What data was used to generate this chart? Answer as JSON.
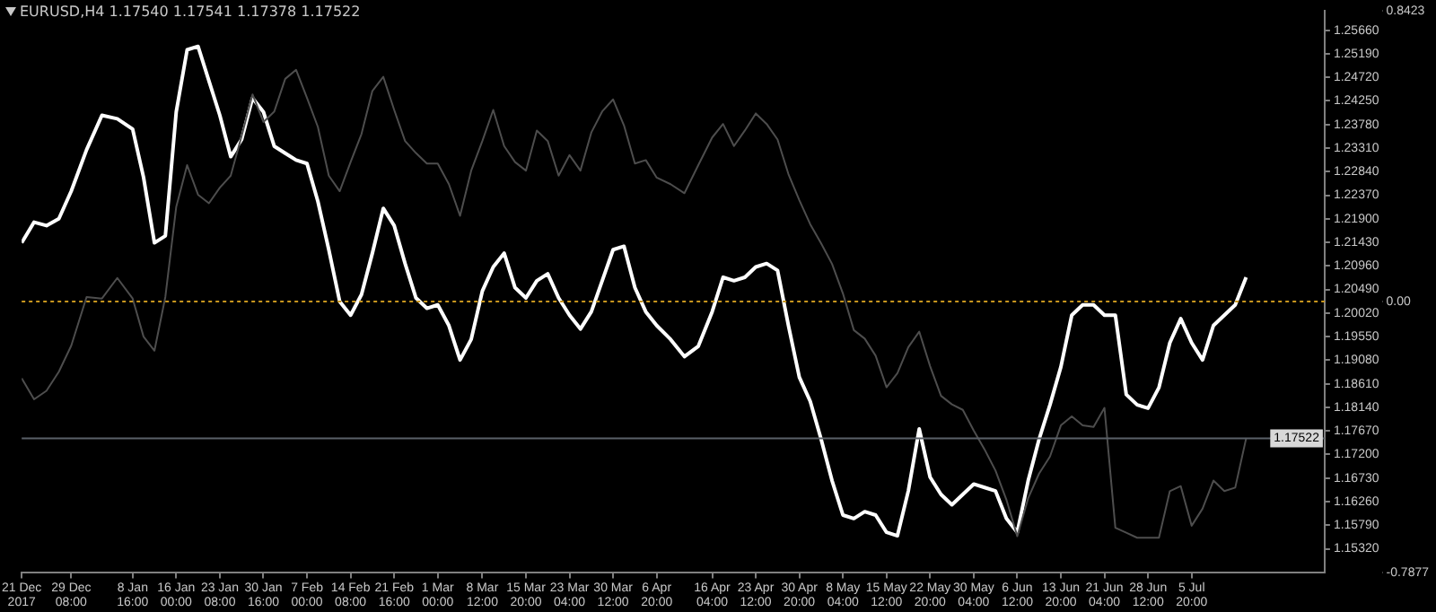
{
  "chart_data": {
    "type": "line",
    "title": "EURUSD,H4 1.17540 1.17541 1.17378 1.17522",
    "grid": false,
    "legend": false,
    "x": [
      "2017-12-21T00:00",
      "2017-12-23T02:00",
      "2017-12-25T04:00",
      "2017-12-27T06:00",
      "2017-12-29T08:00",
      "2017-12-31T22:00",
      "2018-01-03T12:00",
      "2018-01-06T02:00",
      "2018-01-08T16:00",
      "2018-01-10T12:00",
      "2018-01-12T08:00",
      "2018-01-14T04:00",
      "2018-01-16T00:00",
      "2018-01-17T20:00",
      "2018-01-19T16:00",
      "2018-01-21T12:00",
      "2018-01-23T08:00",
      "2018-01-25T04:00",
      "2018-01-27T00:00",
      "2018-01-28T20:00",
      "2018-01-30T16:00",
      "2018-02-01T12:00",
      "2018-02-03T08:00",
      "2018-02-05T04:00",
      "2018-02-07T00:00",
      "2018-02-08T20:00",
      "2018-02-10T16:00",
      "2018-02-12T12:00",
      "2018-02-14T08:00",
      "2018-02-16T04:00",
      "2018-02-18T00:00",
      "2018-02-19T20:00",
      "2018-02-21T16:00",
      "2018-02-23T12:00",
      "2018-02-25T08:00",
      "2018-02-27T04:00",
      "2018-03-01T00:00",
      "2018-03-02T21:00",
      "2018-03-04T18:00",
      "2018-03-06T15:00",
      "2018-03-08T12:00",
      "2018-03-10T08:00",
      "2018-03-12T04:00",
      "2018-03-14T00:00",
      "2018-03-15T20:00",
      "2018-03-17T16:00",
      "2018-03-19T12:00",
      "2018-03-21T08:00",
      "2018-03-23T04:00",
      "2018-03-25T00:00",
      "2018-03-26T20:00",
      "2018-03-28T16:00",
      "2018-03-30T12:00",
      "2018-04-01T08:00",
      "2018-04-03T04:00",
      "2018-04-05T00:00",
      "2018-04-06T20:00",
      "2018-04-09T04:00",
      "2018-04-11T12:00",
      "2018-04-13T20:00",
      "2018-04-16T04:00",
      "2018-04-18T00:00",
      "2018-04-19T20:00",
      "2018-04-21T16:00",
      "2018-04-23T12:00",
      "2018-04-25T08:00",
      "2018-04-27T04:00",
      "2018-04-29T00:00",
      "2018-04-30T20:00",
      "2018-05-02T16:00",
      "2018-05-04T12:00",
      "2018-05-06T08:00",
      "2018-05-08T04:00",
      "2018-05-10T00:00",
      "2018-05-11T20:00",
      "2018-05-13T16:00",
      "2018-05-15T12:00",
      "2018-05-17T08:00",
      "2018-05-19T04:00",
      "2018-05-21T00:00",
      "2018-05-22T20:00",
      "2018-05-24T16:00",
      "2018-05-26T12:00",
      "2018-05-28T08:00",
      "2018-05-30T04:00",
      "2018-06-01T00:00",
      "2018-06-02T20:00",
      "2018-06-04T16:00",
      "2018-06-06T12:00",
      "2018-06-08T08:00",
      "2018-06-10T04:00",
      "2018-06-12T00:00",
      "2018-06-13T20:00",
      "2018-06-15T16:00",
      "2018-06-17T12:00",
      "2018-06-19T08:00",
      "2018-06-21T04:00",
      "2018-06-23T00:00",
      "2018-06-24T20:00",
      "2018-06-26T16:00",
      "2018-06-28T12:00",
      "2018-06-30T08:00",
      "2018-07-02T04:00",
      "2018-07-04T00:00",
      "2018-07-05T20:00",
      "2018-07-07T16:00",
      "2018-07-09T12:00",
      "2018-07-11T08:00",
      "2018-07-13T04:00",
      "2018-07-15T00:00"
    ],
    "xlim": [
      "2017-12-21T00:00",
      "2018-07-28T05:00"
    ],
    "xticks": [
      {
        "value": "2017-12-21T00:00",
        "label": "21 Dec 2017"
      },
      {
        "value": "2017-12-29T08:00",
        "label": "29 Dec 08:00"
      },
      {
        "value": "2018-01-08T16:00",
        "label": "8 Jan 16:00"
      },
      {
        "value": "2018-01-16T00:00",
        "label": "16 Jan 00:00"
      },
      {
        "value": "2018-01-23T08:00",
        "label": "23 Jan 08:00"
      },
      {
        "value": "2018-01-30T16:00",
        "label": "30 Jan 16:00"
      },
      {
        "value": "2018-02-07T00:00",
        "label": "7 Feb 00:00"
      },
      {
        "value": "2018-02-14T08:00",
        "label": "14 Feb 08:00"
      },
      {
        "value": "2018-02-21T16:00",
        "label": "21 Feb 16:00"
      },
      {
        "value": "2018-03-01T00:00",
        "label": "1 Mar 00:00"
      },
      {
        "value": "2018-03-08T12:00",
        "label": "8 Mar 12:00"
      },
      {
        "value": "2018-03-15T20:00",
        "label": "15 Mar 20:00"
      },
      {
        "value": "2018-03-23T04:00",
        "label": "23 Mar 04:00"
      },
      {
        "value": "2018-03-30T12:00",
        "label": "30 Mar 12:00"
      },
      {
        "value": "2018-04-06T20:00",
        "label": "6 Apr 20:00"
      },
      {
        "value": "2018-04-16T04:00",
        "label": "16 Apr 04:00"
      },
      {
        "value": "2018-04-23T12:00",
        "label": "23 Apr 12:00"
      },
      {
        "value": "2018-04-30T20:00",
        "label": "30 Apr 20:00"
      },
      {
        "value": "2018-05-08T04:00",
        "label": "8 May 04:00"
      },
      {
        "value": "2018-05-15T12:00",
        "label": "15 May 12:00"
      },
      {
        "value": "2018-05-22T20:00",
        "label": "22 May 20:00"
      },
      {
        "value": "2018-05-30T04:00",
        "label": "30 May 04:00"
      },
      {
        "value": "2018-06-06T12:00",
        "label": "6 Jun 12:00"
      },
      {
        "value": "2018-06-13T20:00",
        "label": "13 Jun 20:00"
      },
      {
        "value": "2018-06-21T04:00",
        "label": "21 Jun 04:00"
      },
      {
        "value": "2018-06-28T12:00",
        "label": "28 Jun 12:00"
      },
      {
        "value": "2018-07-05T20:00",
        "label": "5 Jul 20:00"
      }
    ],
    "ylim": [
      1.1484,
      1.2604
    ],
    "yticks": [
      {
        "value": 1.2566,
        "label": "1.25660"
      },
      {
        "value": 1.2519,
        "label": "1.25190"
      },
      {
        "value": 1.2472,
        "label": "1.24720"
      },
      {
        "value": 1.2425,
        "label": "1.24250"
      },
      {
        "value": 1.2378,
        "label": "1.23780"
      },
      {
        "value": 1.2331,
        "label": "1.23310"
      },
      {
        "value": 1.2284,
        "label": "1.22840"
      },
      {
        "value": 1.2237,
        "label": "1.22370"
      },
      {
        "value": 1.219,
        "label": "1.21900"
      },
      {
        "value": 1.2143,
        "label": "1.21430"
      },
      {
        "value": 1.2096,
        "label": "1.20960"
      },
      {
        "value": 1.2049,
        "label": "1.20490"
      },
      {
        "value": 1.2002,
        "label": "1.20020"
      },
      {
        "value": 1.1955,
        "label": "1.19550"
      },
      {
        "value": 1.1908,
        "label": "1.19080"
      },
      {
        "value": 1.1861,
        "label": "1.18610"
      },
      {
        "value": 1.1814,
        "label": "1.18140"
      },
      {
        "value": 1.1767,
        "label": "1.17670"
      },
      {
        "value": 1.172,
        "label": "1.17200"
      },
      {
        "value": 1.1673,
        "label": "1.16730"
      },
      {
        "value": 1.1626,
        "label": "1.16260"
      },
      {
        "value": 1.1579,
        "label": "1.15790"
      },
      {
        "value": 1.1532,
        "label": "1.15320"
      }
    ],
    "y2lim": [
      -0.7877,
      0.8423
    ],
    "y2ticks": [
      0.8423,
      {
        "value": 0,
        "label": "0.00"
      },
      -0.7877
    ],
    "series": [
      {
        "color": "#4d4d4d",
        "values": [
          1.1872,
          1.183,
          1.1847,
          1.1885,
          1.1937,
          1.2034,
          1.2031,
          1.2072,
          1.2031,
          1.1955,
          1.1927,
          1.2034,
          1.2214,
          1.2297,
          1.2238,
          1.2221,
          1.2252,
          1.2276,
          1.2355,
          1.2438,
          1.2383,
          1.2404,
          1.2469,
          1.2487,
          1.2431,
          1.2373,
          1.2276,
          1.2245,
          1.2303,
          1.2359,
          1.2445,
          1.2473,
          1.2407,
          1.2345,
          1.2321,
          1.23,
          1.23,
          1.2259,
          1.2196,
          1.2286,
          1.2345,
          1.2407,
          1.2335,
          1.2303,
          1.2286,
          1.2366,
          1.2345,
          1.2276,
          1.2317,
          1.2286,
          1.2362,
          1.2404,
          1.2428,
          1.2376,
          1.23,
          1.2307,
          1.2272,
          1.2259,
          1.2241,
          1.2297,
          1.2352,
          1.2379,
          1.2335,
          1.2366,
          1.24,
          1.2379,
          1.2348,
          1.2279,
          1.2227,
          1.2179,
          1.2141,
          1.21,
          1.2041,
          1.1968,
          1.1951,
          1.1917,
          1.1854,
          1.1882,
          1.1934,
          1.1965,
          1.1896,
          1.1837,
          1.182,
          1.1809,
          1.1768,
          1.173,
          1.1688,
          1.163,
          1.1557,
          1.1633,
          1.1682,
          1.1716,
          1.1778,
          1.1796,
          1.1778,
          1.1775,
          1.1813,
          1.1574,
          1.1564,
          1.1554,
          1.1554,
          1.1554,
          1.1647,
          1.1657,
          1.1578,
          1.1612,
          1.1668,
          1.1647,
          1.1654,
          1.1752
        ]
      },
      {
        "color": "#ffffff",
        "axis": "y2",
        "values": [
          0.17,
          0.23,
          0.22,
          0.24,
          0.32,
          0.44,
          0.54,
          0.53,
          0.5,
          0.36,
          0.17,
          0.19,
          0.55,
          0.73,
          0.74,
          0.64,
          0.54,
          0.42,
          0.47,
          0.59,
          0.55,
          0.45,
          0.43,
          0.41,
          0.4,
          0.29,
          0.15,
          0.0,
          -0.04,
          0.02,
          0.14,
          0.27,
          0.22,
          0.11,
          0.01,
          -0.02,
          -0.01,
          -0.07,
          -0.17,
          -0.11,
          0.03,
          0.1,
          0.14,
          0.04,
          0.01,
          0.06,
          0.08,
          0.01,
          -0.04,
          -0.08,
          -0.03,
          0.06,
          0.15,
          0.16,
          0.04,
          -0.03,
          -0.07,
          -0.11,
          -0.16,
          -0.13,
          -0.03,
          0.07,
          0.06,
          0.07,
          0.1,
          0.11,
          0.09,
          -0.07,
          -0.22,
          -0.29,
          -0.4,
          -0.52,
          -0.62,
          -0.63,
          -0.61,
          -0.62,
          -0.67,
          -0.68,
          -0.55,
          -0.37,
          -0.51,
          -0.56,
          -0.59,
          -0.56,
          -0.53,
          -0.54,
          -0.55,
          -0.63,
          -0.67,
          -0.52,
          -0.4,
          -0.3,
          -0.19,
          -0.04,
          -0.01,
          -0.01,
          -0.04,
          -0.04,
          -0.27,
          -0.3,
          -0.31,
          -0.25,
          -0.12,
          -0.05,
          -0.12,
          -0.17,
          -0.07,
          -0.04,
          -0.01,
          0.07
        ]
      }
    ],
    "ref_lines": [
      {
        "axis": "y2",
        "value": 0,
        "color": "#c8961e",
        "line_style": "dotted"
      },
      {
        "axis": "y",
        "value": 1.17522,
        "label": "1.17522",
        "color": "#5a6068",
        "line_style": "solid"
      }
    ]
  }
}
